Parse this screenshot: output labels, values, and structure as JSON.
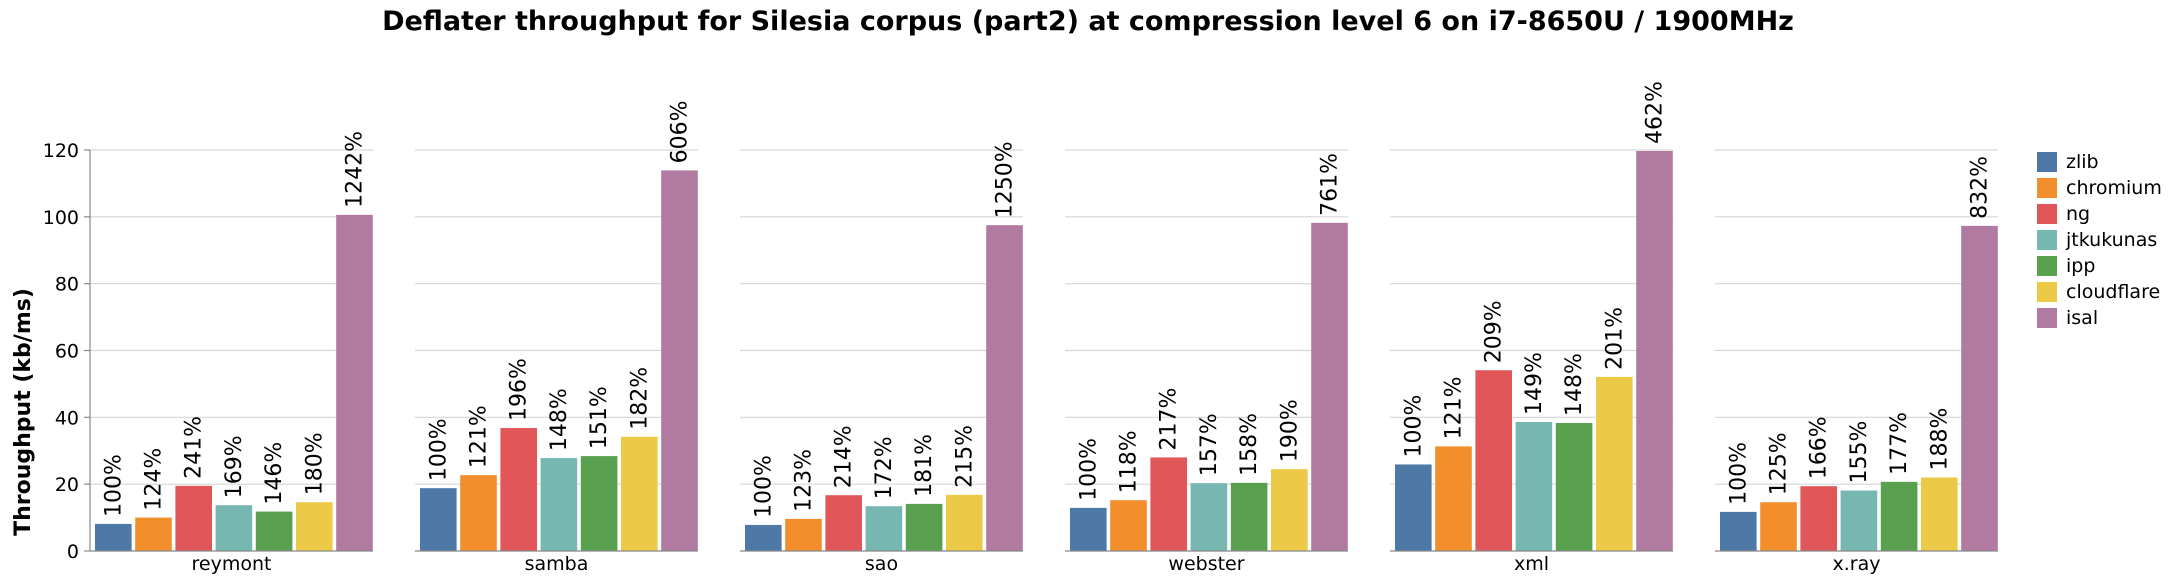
{
  "chart_data": {
    "type": "bar",
    "title": "Deflater throughput for Silesia corpus (part2) at compression level 6 on i7-8650U / 1900MHz",
    "xlabel": "",
    "ylabel": "Throughput (kb/ms)",
    "ylim": [
      0,
      120
    ],
    "yticks": [
      0,
      20,
      40,
      60,
      80,
      100,
      120
    ],
    "grid": true,
    "legend_position": "right",
    "categories": [
      "reymont",
      "samba",
      "sao",
      "webster",
      "xml",
      "x.ray"
    ],
    "series": [
      {
        "name": "zlib",
        "color": "#4e79a7",
        "values": [
          8.1,
          18.8,
          7.8,
          12.9,
          25.9,
          11.7
        ],
        "labels": [
          "100%",
          "100%",
          "100%",
          "100%",
          "100%",
          "100%"
        ]
      },
      {
        "name": "chromium",
        "color": "#f28e2b",
        "values": [
          10.0,
          22.7,
          9.6,
          15.2,
          31.3,
          14.6
        ],
        "labels": [
          "124%",
          "121%",
          "123%",
          "118%",
          "121%",
          "125%"
        ]
      },
      {
        "name": "ng",
        "color": "#e15759",
        "values": [
          19.5,
          36.8,
          16.7,
          28.0,
          54.1,
          19.4
        ],
        "labels": [
          "241%",
          "196%",
          "214%",
          "217%",
          "209%",
          "166%"
        ]
      },
      {
        "name": "jtkukunas",
        "color": "#76b7b2",
        "values": [
          13.7,
          27.8,
          13.4,
          20.3,
          38.6,
          18.1
        ],
        "labels": [
          "169%",
          "148%",
          "172%",
          "157%",
          "149%",
          "155%"
        ]
      },
      {
        "name": "ipp",
        "color": "#59a14f",
        "values": [
          11.8,
          28.4,
          14.1,
          20.4,
          38.3,
          20.7
        ],
        "labels": [
          "146%",
          "151%",
          "181%",
          "158%",
          "148%",
          "177%"
        ]
      },
      {
        "name": "cloudflare",
        "color": "#edc948",
        "values": [
          14.6,
          34.2,
          16.8,
          24.5,
          52.1,
          22.0
        ],
        "labels": [
          "180%",
          "182%",
          "215%",
          "190%",
          "201%",
          "188%"
        ]
      },
      {
        "name": "isal",
        "color": "#b07aa1",
        "values": [
          100.6,
          113.9,
          97.5,
          98.2,
          119.7,
          97.3
        ],
        "labels": [
          "1242%",
          "606%",
          "1250%",
          "761%",
          "462%",
          "832%"
        ]
      }
    ]
  }
}
